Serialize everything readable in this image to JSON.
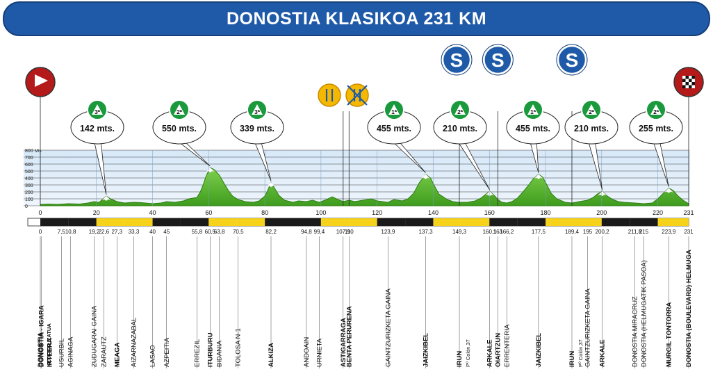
{
  "title": "DONOSTIA KLASIKOA 231 KM",
  "chart_data": {
    "type": "area",
    "title": "DONOSTIA KLASIKOA 231 KM",
    "xlim": [
      0,
      231
    ],
    "ylim": [
      0,
      800
    ],
    "x_ticks": [
      0,
      20,
      40,
      60,
      80,
      100,
      120,
      140,
      160,
      180,
      200,
      220,
      231
    ],
    "y_ticks": [
      0,
      100,
      200,
      300,
      400,
      500,
      600,
      700,
      800
    ],
    "y_unit": "Mts",
    "profile": [
      [
        0,
        20
      ],
      [
        3,
        25
      ],
      [
        6,
        20
      ],
      [
        10,
        30
      ],
      [
        14,
        25
      ],
      [
        17,
        40
      ],
      [
        19.2,
        60
      ],
      [
        21,
        50
      ],
      [
        22.6,
        110
      ],
      [
        23.5,
        140
      ],
      [
        25,
        100
      ],
      [
        27.3,
        60
      ],
      [
        30,
        40
      ],
      [
        33.3,
        50
      ],
      [
        36,
        45
      ],
      [
        40,
        30
      ],
      [
        43,
        40
      ],
      [
        45,
        60
      ],
      [
        48,
        50
      ],
      [
        51,
        70
      ],
      [
        53,
        100
      ],
      [
        55.8,
        120
      ],
      [
        57,
        200
      ],
      [
        58,
        300
      ],
      [
        59,
        420
      ],
      [
        60.5,
        550
      ],
      [
        62,
        520
      ],
      [
        63.8,
        440
      ],
      [
        65.5,
        320
      ],
      [
        67,
        220
      ],
      [
        68.5,
        140
      ],
      [
        70.5,
        90
      ],
      [
        73,
        60
      ],
      [
        76,
        50
      ],
      [
        78,
        70
      ],
      [
        80,
        140
      ],
      [
        81,
        220
      ],
      [
        82.2,
        339
      ],
      [
        83.5,
        250
      ],
      [
        85,
        150
      ],
      [
        87,
        80
      ],
      [
        90,
        50
      ],
      [
        92,
        70
      ],
      [
        94.8,
        60
      ],
      [
        97,
        80
      ],
      [
        99.4,
        50
      ],
      [
        102,
        90
      ],
      [
        104,
        130
      ],
      [
        106,
        90
      ],
      [
        107.9,
        60
      ],
      [
        110,
        80
      ],
      [
        112,
        60
      ],
      [
        115,
        80
      ],
      [
        118,
        100
      ],
      [
        120,
        70
      ],
      [
        123.9,
        50
      ],
      [
        126,
        90
      ],
      [
        129,
        70
      ],
      [
        131,
        100
      ],
      [
        133,
        180
      ],
      [
        135,
        330
      ],
      [
        137.3,
        455
      ],
      [
        139,
        400
      ],
      [
        140.5,
        280
      ],
      [
        142,
        170
      ],
      [
        145,
        90
      ],
      [
        147,
        60
      ],
      [
        149.3,
        50
      ],
      [
        152,
        50
      ],
      [
        155,
        70
      ],
      [
        157,
        110
      ],
      [
        158.5,
        160
      ],
      [
        160.1,
        210
      ],
      [
        161.5,
        160
      ],
      [
        163,
        90
      ],
      [
        164.5,
        50
      ],
      [
        166.2,
        40
      ],
      [
        168,
        60
      ],
      [
        170,
        110
      ],
      [
        172,
        200
      ],
      [
        174,
        300
      ],
      [
        175.5,
        380
      ],
      [
        177.5,
        455
      ],
      [
        179,
        410
      ],
      [
        180.5,
        300
      ],
      [
        182,
        180
      ],
      [
        184,
        100
      ],
      [
        187,
        50
      ],
      [
        189.4,
        40
      ],
      [
        192,
        60
      ],
      [
        195,
        80
      ],
      [
        197,
        120
      ],
      [
        198.5,
        170
      ],
      [
        200.2,
        210
      ],
      [
        202,
        140
      ],
      [
        204,
        90
      ],
      [
        206,
        60
      ],
      [
        208,
        50
      ],
      [
        211.8,
        40
      ],
      [
        215,
        30
      ],
      [
        218,
        40
      ],
      [
        220,
        100
      ],
      [
        222,
        180
      ],
      [
        223.9,
        255
      ],
      [
        225.5,
        220
      ],
      [
        227,
        150
      ],
      [
        229,
        80
      ],
      [
        231,
        30
      ]
    ],
    "peaks": [
      {
        "km": 23.5,
        "altitude_label": "142 mts.",
        "category": "3ª"
      },
      {
        "km": 60.5,
        "altitude_label": "550 mts.",
        "category": "2ª"
      },
      {
        "km": 82.2,
        "altitude_label": "339 mts.",
        "category": "3ª"
      },
      {
        "km": 137.3,
        "altitude_label": "455 mts.",
        "category": "1ª"
      },
      {
        "km": 160.1,
        "altitude_label": "210 mts.",
        "category": "2ª"
      },
      {
        "km": 177.5,
        "altitude_label": "455 mts.",
        "category": "1ª"
      },
      {
        "km": 200.2,
        "altitude_label": "210 mts.",
        "category": "2ª"
      },
      {
        "km": 223.9,
        "altitude_label": "255 mts.",
        "category": "2ª"
      }
    ],
    "sprints": [
      {
        "km": 149.3,
        "label": "S"
      },
      {
        "km": 163,
        "label": "S"
      },
      {
        "km": 189.4,
        "label": "S"
      }
    ],
    "feed_zone": [
      {
        "km": 107.9,
        "kind": "start"
      },
      {
        "km": 110,
        "kind": "end"
      }
    ],
    "start_km": 0,
    "finish_km": 231,
    "waypoints": [
      {
        "km": 0,
        "km_label": "0",
        "lines": [
          {
            "t": "DONOSTIA",
            "b": true
          },
          {
            "t": "NEUTRALIZATUA",
            "b": true,
            "small": true
          }
        ]
      },
      {
        "km": 0.4,
        "km_label": "",
        "lines": [
          {
            "t": "DONOSTIA - IGARA",
            "b": true
          },
          {
            "t": "IRTEERA",
            "b": true
          }
        ]
      },
      {
        "km": 7.5,
        "km_label": "7,5",
        "lines": [
          {
            "t": "USURBIL",
            "b": false
          }
        ]
      },
      {
        "km": 10.8,
        "km_label": "10,8",
        "lines": [
          {
            "t": "AGINAGA",
            "b": false
          }
        ]
      },
      {
        "km": 19.2,
        "km_label": "19,2",
        "lines": [
          {
            "t": "ZUDUGARAI GAINA",
            "b": false
          }
        ]
      },
      {
        "km": 22.6,
        "km_label": "22,6",
        "lines": [
          {
            "t": "ZARAUTZ",
            "b": false
          }
        ]
      },
      {
        "km": 27.3,
        "km_label": "27,3",
        "lines": [
          {
            "t": "MEAGA",
            "b": true
          }
        ]
      },
      {
        "km": 33.3,
        "km_label": "33,3",
        "lines": [
          {
            "t": "AIZARNAZABAL",
            "b": false
          }
        ]
      },
      {
        "km": 40,
        "km_label": "40",
        "lines": [
          {
            "t": "LASAO",
            "b": false
          }
        ]
      },
      {
        "km": 45,
        "km_label": "45",
        "lines": [
          {
            "t": "AZPEITIA",
            "b": false
          }
        ]
      },
      {
        "km": 55.8,
        "km_label": "55,8",
        "lines": [
          {
            "t": "ERREZIL",
            "b": false
          }
        ]
      },
      {
        "km": 60.5,
        "km_label": "60,5",
        "lines": [
          {
            "t": "ITURBURU",
            "b": true
          }
        ]
      },
      {
        "km": 63.8,
        "km_label": "63,8",
        "lines": [
          {
            "t": "BIDANIA",
            "b": false
          }
        ]
      },
      {
        "km": 70.5,
        "km_label": "70,5",
        "lines": [
          {
            "t": "TOLOSA N-1",
            "b": false
          }
        ]
      },
      {
        "km": 82.2,
        "km_label": "82,2",
        "lines": [
          {
            "t": "ALKIZA",
            "b": true
          }
        ]
      },
      {
        "km": 94.8,
        "km_label": "94,8",
        "lines": [
          {
            "t": "ANDOAIN",
            "b": false
          }
        ]
      },
      {
        "km": 99.4,
        "km_label": "99,4",
        "lines": [
          {
            "t": "URNIETA",
            "b": false
          }
        ]
      },
      {
        "km": 107.9,
        "km_label": "107,9",
        "lines": [
          {
            "t": "ASTIGARRAGA",
            "b": true
          }
        ]
      },
      {
        "km": 110,
        "km_label": "110",
        "lines": [
          {
            "t": "BENTA PERURENA",
            "b": true
          }
        ]
      },
      {
        "km": 123.9,
        "km_label": "123,9",
        "lines": [
          {
            "t": "GAINTZURIZKETA GAINA",
            "b": false
          }
        ]
      },
      {
        "km": 137.3,
        "km_label": "137,3",
        "lines": [
          {
            "t": "JAIZKIBEL",
            "b": true
          }
        ]
      },
      {
        "km": 149.3,
        "km_label": "149,3",
        "lines": [
          {
            "t": "IRUN",
            "b": true
          },
          {
            "t": "Pº Colón,37",
            "b": false,
            "small": true
          }
        ]
      },
      {
        "km": 160.1,
        "km_label": "160,1",
        "lines": [
          {
            "t": "ARKALE",
            "b": true
          }
        ]
      },
      {
        "km": 163,
        "km_label": "163",
        "lines": [
          {
            "t": "OIARTZUN",
            "b": true
          }
        ]
      },
      {
        "km": 166.2,
        "km_label": "166,2",
        "lines": [
          {
            "t": "ERRENTERIA",
            "b": false
          }
        ]
      },
      {
        "km": 177.5,
        "km_label": "177,5",
        "lines": [
          {
            "t": "JAIZKIBEL",
            "b": true
          }
        ]
      },
      {
        "km": 189.4,
        "km_label": "189,4",
        "lines": [
          {
            "t": "IRUN",
            "b": true
          },
          {
            "t": "Pº Colón,37",
            "b": false,
            "small": true
          }
        ]
      },
      {
        "km": 195,
        "km_label": "195",
        "lines": [
          {
            "t": "GAINTZURIZKETA GAINA",
            "b": false
          }
        ]
      },
      {
        "km": 200.2,
        "km_label": "200,2",
        "lines": [
          {
            "t": "ARKALE",
            "b": true
          }
        ]
      },
      {
        "km": 211.8,
        "km_label": "211,8",
        "lines": [
          {
            "t": "DONOSTIA MIRACRUZ",
            "b": false
          }
        ]
      },
      {
        "km": 215,
        "km_label": "215",
        "lines": [
          {
            "t": "DONOSTIA (HELMUGATIK PASOA)",
            "b": false
          }
        ]
      },
      {
        "km": 223.9,
        "km_label": "223,9",
        "lines": [
          {
            "t": "MURGIL TONTORRA",
            "b": true
          }
        ]
      },
      {
        "km": 231,
        "km_label": "231",
        "lines": [
          {
            "t": "DONOSTIA (BOULEVARD) HELMUGA",
            "b": true
          }
        ]
      }
    ],
    "colors": {
      "profile_fill": "#5cbd2f",
      "profile_stroke": "#2e7d12",
      "sky_top": "#d7e8f8",
      "sky_bottom": "#eef5fc",
      "title_bg": "#1f5aa8",
      "badge_green": "#1a9a3c",
      "sprint_blue": "#1f5aa8",
      "start_red": "#b51a1a",
      "feed_yellow": "#f5b800",
      "bar_black": "#1a1a1a",
      "bar_yellow": "#f7d21a"
    },
    "icons": {
      "start": "start-flag-icon",
      "finish": "checkered-flag-icon",
      "sprint": "sprint-s-icon",
      "feed_start": "fork-knife-icon",
      "feed_end": "fork-knife-crossed-icon",
      "mountain": "mountain-category-icon"
    }
  }
}
